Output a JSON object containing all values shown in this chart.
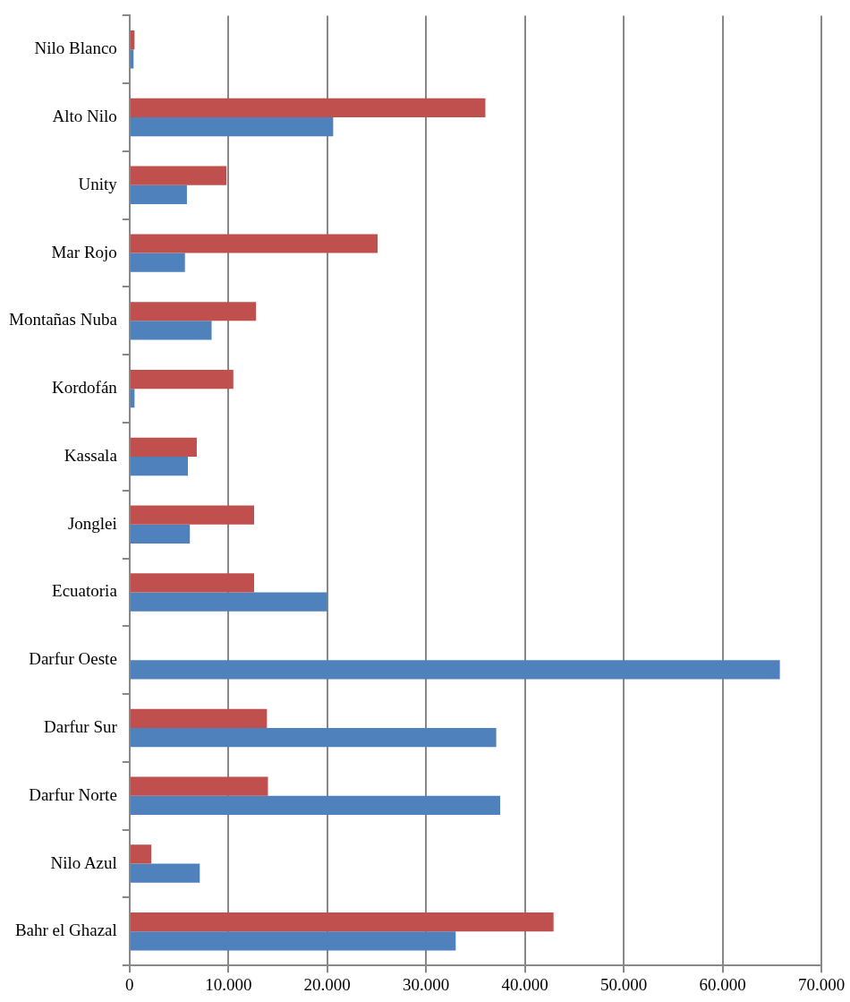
{
  "chart_data": {
    "type": "bar",
    "orientation": "horizontal",
    "categories": [
      "Nilo Blanco",
      "Alto Nilo",
      "Unity",
      "Mar Rojo",
      "Montañas Nuba",
      "Kordofán",
      "Kassala",
      "Jonglei",
      "Ecuatoria",
      "Darfur Oeste",
      "Darfur Sur",
      "Darfur Norte",
      "Nilo Azul",
      "Bahr el Ghazal"
    ],
    "series": [
      {
        "color": "#c0504d",
        "values": [
          500,
          36000,
          9800,
          25100,
          12800,
          10500,
          6800,
          12600,
          12600,
          null,
          13900,
          14000,
          2200,
          42900
        ]
      },
      {
        "color": "#4f81bd",
        "values": [
          400,
          20600,
          5800,
          5600,
          8300,
          500,
          5900,
          6100,
          20000,
          65800,
          37100,
          37500,
          7100,
          33000
        ]
      }
    ],
    "xlim": [
      0,
      70000
    ],
    "xticks": [
      {
        "value": 0,
        "label": "0"
      },
      {
        "value": 10000,
        "label": "10.000"
      },
      {
        "value": 20000,
        "label": "20.000"
      },
      {
        "value": 30000,
        "label": "30.000"
      },
      {
        "value": 40000,
        "label": "40.000"
      },
      {
        "value": 50000,
        "label": "50.000"
      },
      {
        "value": 60000,
        "label": "60.000"
      },
      {
        "value": 70000,
        "label": "70.000"
      }
    ],
    "grid": "x",
    "legend": false
  }
}
